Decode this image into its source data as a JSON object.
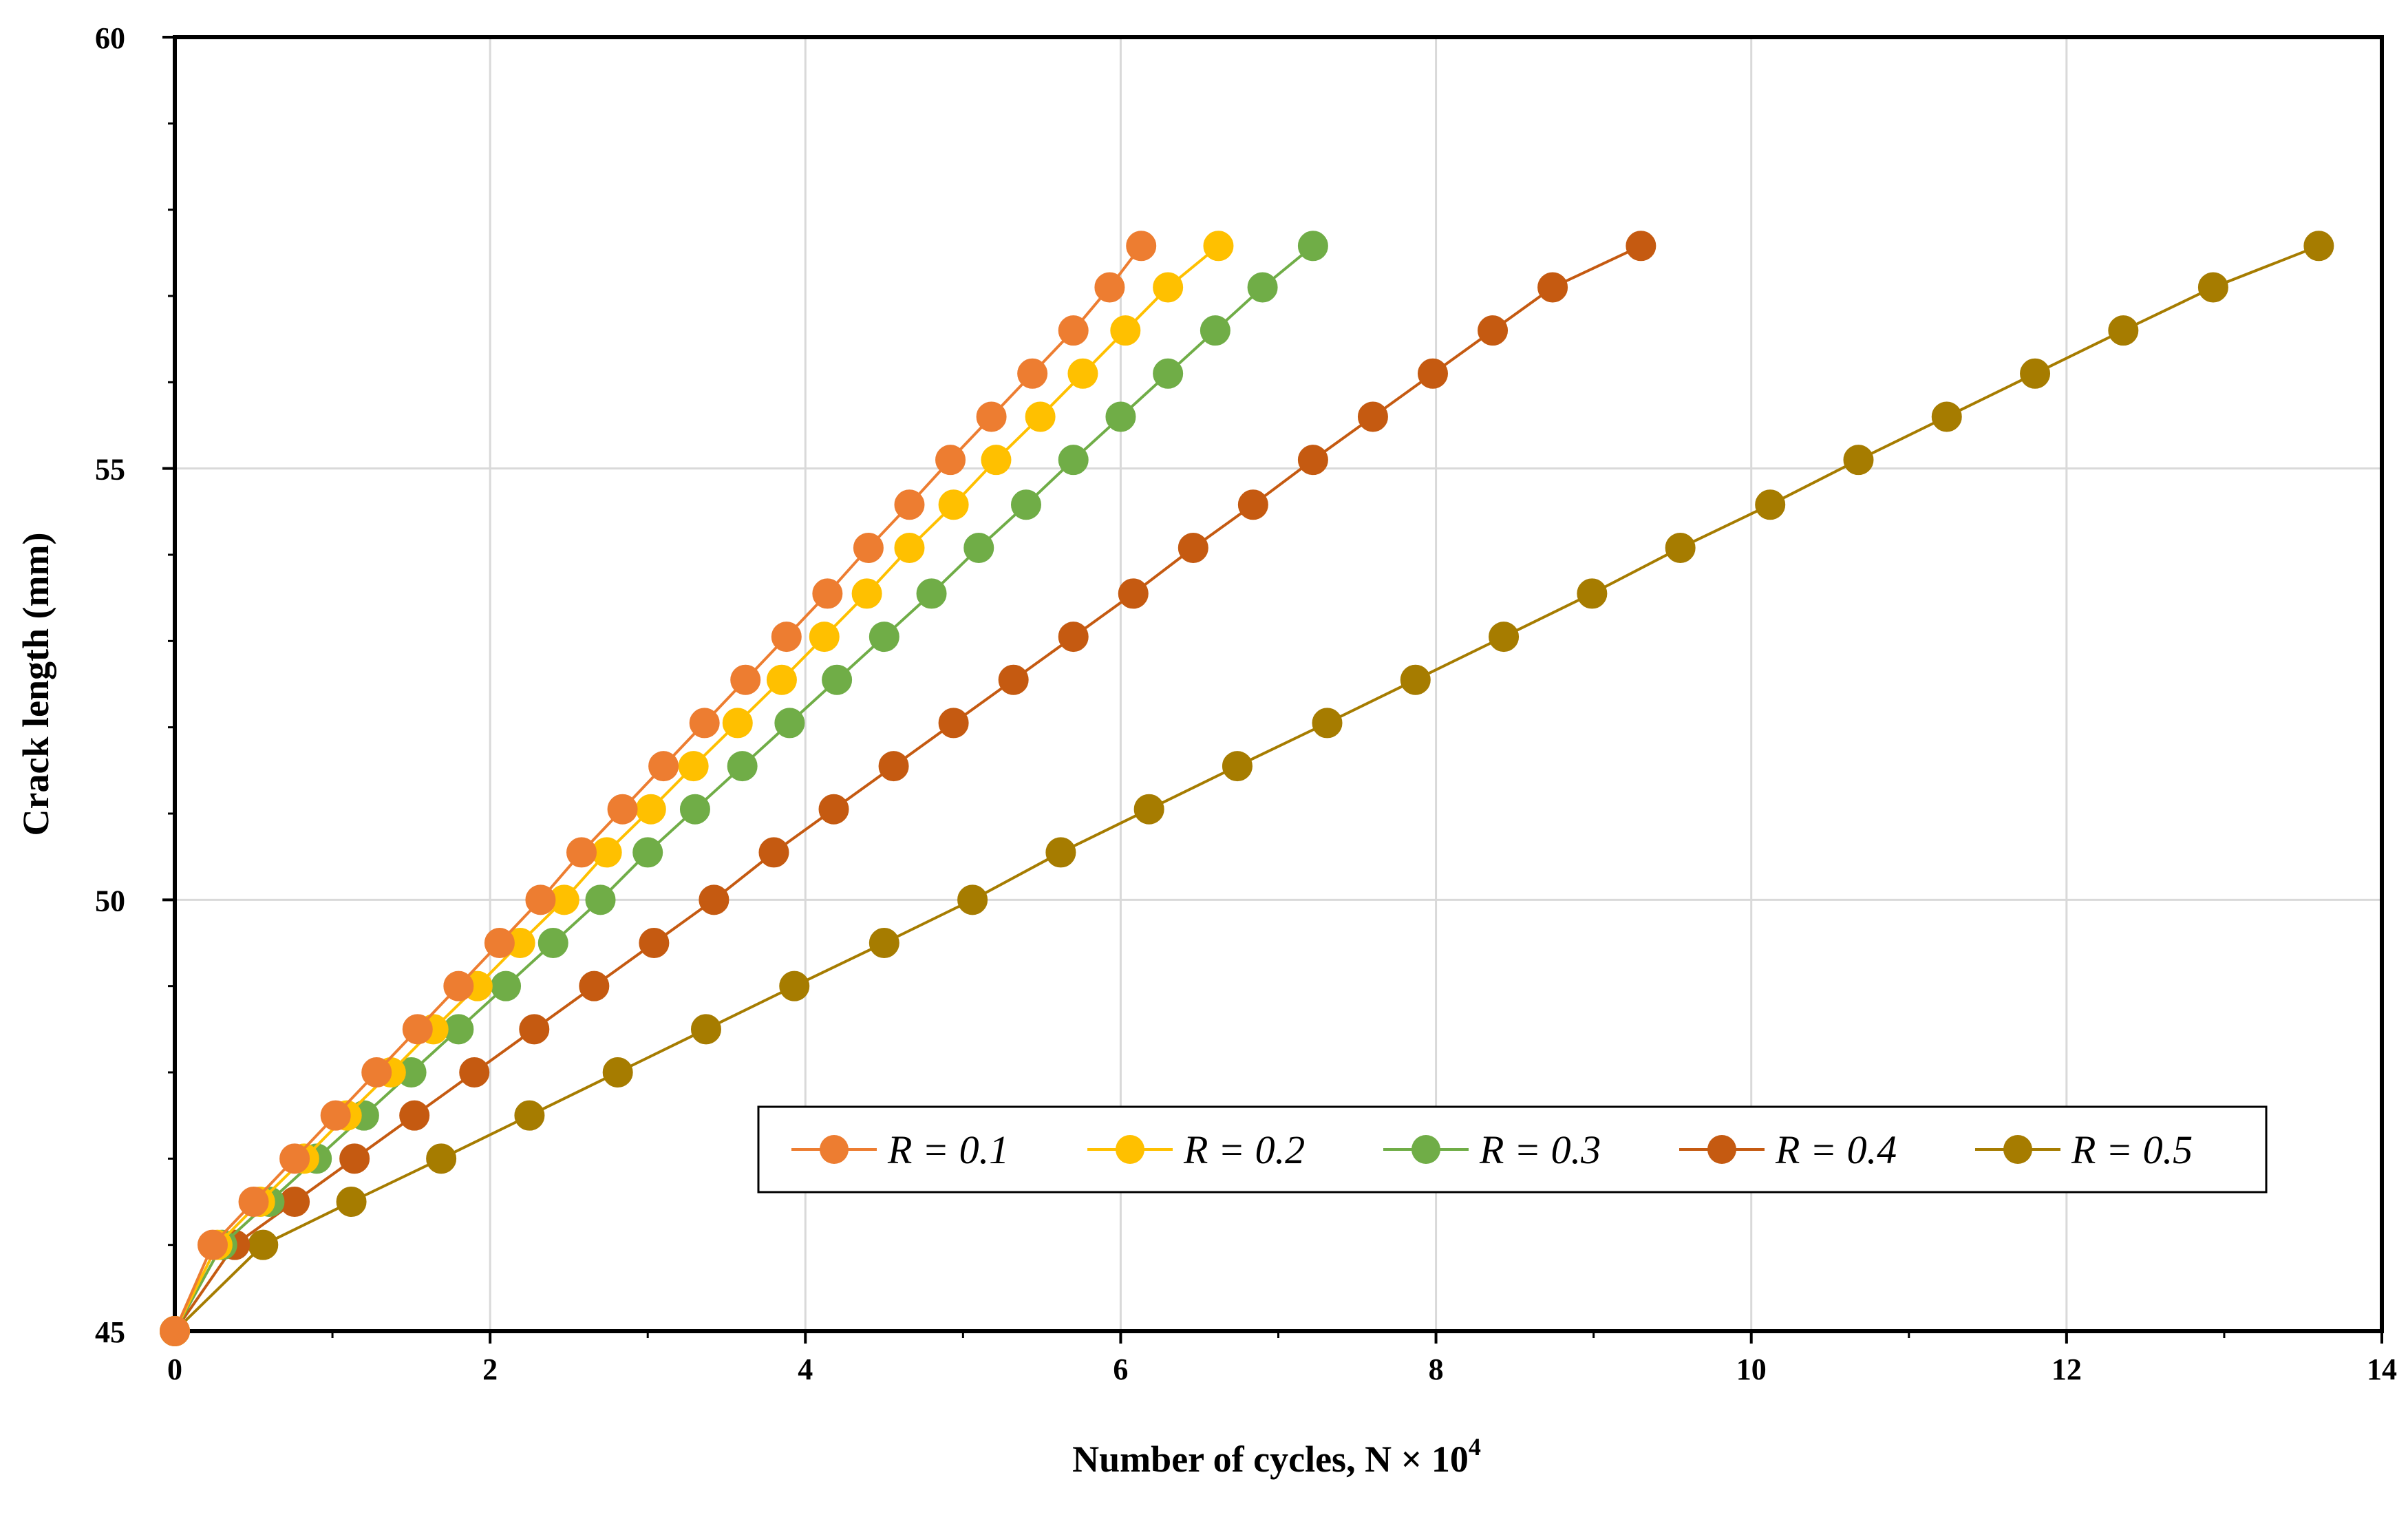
{
  "chart_data": {
    "type": "line",
    "title": "",
    "xlabel": "Number of cycles, N × 10",
    "xlabel_exponent": "4",
    "ylabel": "Crack length (mm)",
    "xlim": [
      0,
      14
    ],
    "ylim": [
      45,
      60
    ],
    "xticks": [
      0,
      2,
      4,
      6,
      8,
      10,
      12,
      14
    ],
    "yticks": [
      45,
      50,
      55,
      60
    ],
    "grid": true,
    "legend_position": "lower-right",
    "series": [
      {
        "name": "R = 0.1",
        "color": "#ED7D31",
        "x": [
          0,
          0.24,
          0.5,
          0.76,
          1.02,
          1.28,
          1.54,
          1.8,
          2.06,
          2.32,
          2.58,
          2.84,
          3.1,
          3.36,
          3.62,
          3.88,
          4.14,
          4.4,
          4.66,
          4.92,
          5.18,
          5.44,
          5.7,
          5.93,
          6.13
        ],
        "y": [
          45,
          46,
          46.5,
          47,
          47.5,
          48,
          48.5,
          49,
          49.5,
          50,
          50.55,
          51.05,
          51.55,
          52.05,
          52.55,
          53.05,
          53.55,
          54.08,
          54.58,
          55.1,
          55.6,
          56.1,
          56.6,
          57.1,
          57.58
        ]
      },
      {
        "name": "R = 0.2",
        "color": "#FFC000",
        "x": [
          0,
          0.27,
          0.54,
          0.82,
          1.09,
          1.37,
          1.64,
          1.92,
          2.19,
          2.47,
          2.74,
          3.02,
          3.29,
          3.57,
          3.85,
          4.12,
          4.39,
          4.66,
          4.94,
          5.21,
          5.49,
          5.76,
          6.03,
          6.3,
          6.62
        ],
        "y": [
          45,
          46,
          46.5,
          47,
          47.5,
          48,
          48.5,
          49,
          49.5,
          50,
          50.55,
          51.05,
          51.55,
          52.05,
          52.55,
          53.05,
          53.55,
          54.08,
          54.58,
          55.1,
          55.6,
          56.1,
          56.6,
          57.1,
          57.58
        ]
      },
      {
        "name": "R = 0.3",
        "color": "#70AD47",
        "x": [
          0,
          0.3,
          0.6,
          0.9,
          1.2,
          1.5,
          1.8,
          2.1,
          2.4,
          2.7,
          3.0,
          3.3,
          3.6,
          3.9,
          4.2,
          4.5,
          4.8,
          5.1,
          5.4,
          5.7,
          6.0,
          6.3,
          6.6,
          6.9,
          7.22
        ],
        "y": [
          45,
          46,
          46.5,
          47,
          47.5,
          48,
          48.5,
          49,
          49.5,
          50,
          50.55,
          51.05,
          51.55,
          52.05,
          52.55,
          53.05,
          53.55,
          54.08,
          54.58,
          55.1,
          55.6,
          56.1,
          56.6,
          57.1,
          57.58
        ]
      },
      {
        "name": "R = 0.4",
        "color": "#C55A11",
        "x": [
          0,
          0.38,
          0.76,
          1.14,
          1.52,
          1.9,
          2.28,
          2.66,
          3.04,
          3.42,
          3.8,
          4.18,
          4.56,
          4.94,
          5.32,
          5.7,
          6.08,
          6.46,
          6.84,
          7.22,
          7.6,
          7.98,
          8.36,
          8.74,
          9.3
        ],
        "y": [
          45,
          46,
          46.5,
          47,
          47.5,
          48,
          48.5,
          49,
          49.5,
          50,
          50.55,
          51.05,
          51.55,
          52.05,
          52.55,
          53.05,
          53.55,
          54.08,
          54.58,
          55.1,
          55.6,
          56.1,
          56.6,
          57.1,
          57.58
        ]
      },
      {
        "name": "R = 0.5",
        "color": "#A67C00",
        "x": [
          0,
          0.56,
          1.12,
          1.69,
          2.25,
          2.81,
          3.37,
          3.93,
          4.5,
          5.06,
          5.62,
          6.18,
          6.74,
          7.31,
          7.87,
          8.43,
          8.99,
          9.55,
          10.12,
          10.68,
          11.24,
          11.8,
          12.36,
          12.93,
          13.6
        ],
        "y": [
          45,
          46,
          46.5,
          47,
          47.5,
          48,
          48.5,
          49,
          49.5,
          50,
          50.55,
          51.05,
          51.55,
          52.05,
          52.55,
          53.05,
          53.55,
          54.08,
          54.58,
          55.1,
          55.6,
          56.1,
          56.6,
          57.1,
          57.58
        ]
      }
    ]
  }
}
